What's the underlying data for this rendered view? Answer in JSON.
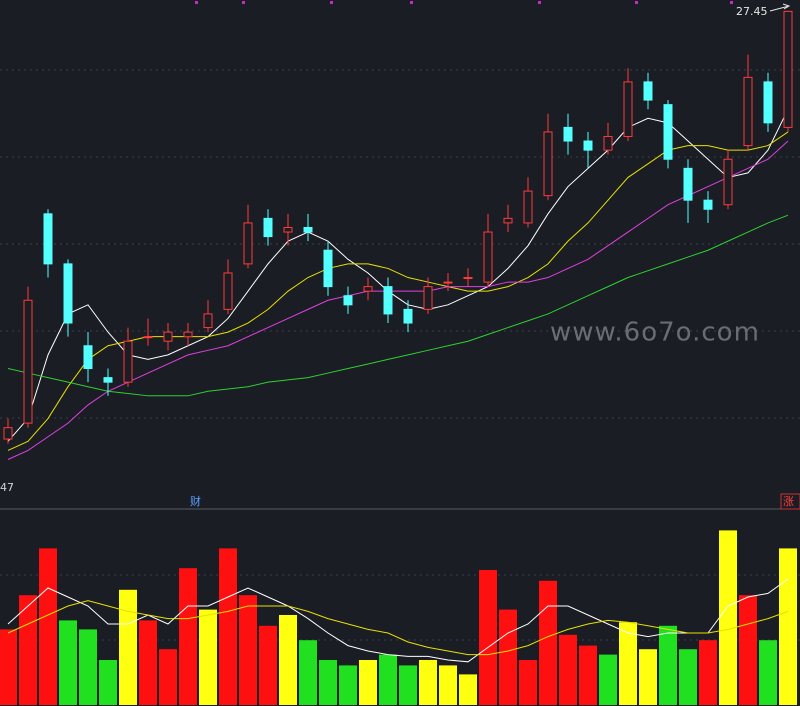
{
  "chart_data": [
    {
      "type": "candlestick",
      "up_color": "#ff3a3a",
      "down_color": "#54ffff",
      "ylim": [
        16.6,
        27.7
      ],
      "open": [
        18.05,
        18.4,
        23.0,
        21.9,
        20.1,
        19.4,
        19.3,
        20.3,
        20.2,
        20.3,
        20.5,
        20.9,
        21.9,
        22.9,
        22.6,
        22.7,
        22.2,
        21.2,
        21.3,
        21.4,
        20.9,
        20.9,
        21.5,
        21.6,
        21.5,
        22.8,
        22.8,
        23.4,
        24.9,
        24.6,
        24.4,
        24.7,
        25.9,
        25.4,
        24.0,
        23.3,
        23.2,
        24.5,
        25.9,
        24.9
      ],
      "high": [
        18.5,
        21.4,
        23.1,
        22.0,
        20.4,
        19.6,
        20.5,
        20.7,
        20.6,
        20.6,
        21.1,
        22.0,
        23.2,
        23.1,
        23.0,
        23.0,
        22.4,
        21.4,
        21.6,
        21.6,
        21.1,
        21.6,
        21.7,
        21.8,
        23.0,
        23.2,
        23.8,
        25.2,
        25.2,
        24.8,
        25.0,
        26.2,
        26.1,
        25.5,
        24.2,
        23.5,
        24.4,
        26.5,
        26.1,
        27.45
      ],
      "low": [
        17.95,
        18.3,
        21.6,
        20.3,
        19.3,
        19.0,
        19.2,
        20.1,
        20.0,
        20.1,
        20.4,
        20.8,
        21.8,
        22.3,
        22.3,
        22.4,
        21.2,
        20.8,
        21.1,
        20.6,
        20.4,
        20.8,
        21.3,
        21.4,
        21.4,
        22.6,
        22.7,
        23.3,
        24.3,
        24.0,
        24.3,
        24.6,
        25.3,
        24.0,
        22.8,
        22.8,
        23.1,
        24.4,
        24.8,
        24.8
      ],
      "close": [
        18.3,
        21.1,
        21.9,
        20.6,
        19.6,
        19.3,
        20.2,
        20.3,
        20.4,
        20.4,
        20.8,
        21.7,
        22.8,
        22.5,
        22.7,
        22.6,
        21.4,
        21.0,
        21.4,
        20.8,
        20.6,
        21.4,
        21.5,
        21.6,
        22.6,
        22.9,
        23.5,
        24.8,
        24.6,
        24.4,
        24.7,
        25.9,
        25.5,
        24.2,
        23.3,
        23.1,
        24.2,
        26.0,
        25.0,
        27.45
      ],
      "lines": [
        {
          "color": "#ffffff",
          "values": [
            18.0,
            18.5,
            19.9,
            20.8,
            21.0,
            20.4,
            19.9,
            19.8,
            19.9,
            20.1,
            20.3,
            20.7,
            21.3,
            21.9,
            22.4,
            22.6,
            22.4,
            22.0,
            21.7,
            21.3,
            21.0,
            20.9,
            21.0,
            21.2,
            21.4,
            21.8,
            22.3,
            23.0,
            23.6,
            24.0,
            24.4,
            24.9,
            25.1,
            25.0,
            24.6,
            24.2,
            23.8,
            23.9,
            24.4,
            25.3
          ]
        },
        {
          "color": "#e8e000",
          "values": [
            17.8,
            18.0,
            18.5,
            19.2,
            19.8,
            20.1,
            20.2,
            20.3,
            20.3,
            20.3,
            20.3,
            20.4,
            20.6,
            20.9,
            21.3,
            21.6,
            21.8,
            21.9,
            21.9,
            21.8,
            21.6,
            21.5,
            21.4,
            21.3,
            21.3,
            21.4,
            21.6,
            21.9,
            22.4,
            22.8,
            23.3,
            23.8,
            24.1,
            24.4,
            24.5,
            24.5,
            24.4,
            24.4,
            24.5,
            24.8
          ]
        },
        {
          "color": "#e040e0",
          "values": [
            17.6,
            17.8,
            18.1,
            18.4,
            18.8,
            19.1,
            19.3,
            19.5,
            19.7,
            19.9,
            20.0,
            20.1,
            20.3,
            20.5,
            20.7,
            20.9,
            21.1,
            21.2,
            21.3,
            21.3,
            21.3,
            21.3,
            21.4,
            21.4,
            21.4,
            21.5,
            21.5,
            21.6,
            21.8,
            22.0,
            22.3,
            22.6,
            22.9,
            23.2,
            23.4,
            23.6,
            23.8,
            24.0,
            24.2,
            24.6
          ]
        },
        {
          "color": "#30d030",
          "values": [
            19.6,
            19.5,
            19.4,
            19.3,
            19.2,
            19.1,
            19.05,
            19.0,
            19.0,
            19.0,
            19.1,
            19.15,
            19.2,
            19.3,
            19.35,
            19.4,
            19.5,
            19.6,
            19.7,
            19.8,
            19.9,
            20.0,
            20.1,
            20.2,
            20.35,
            20.5,
            20.65,
            20.8,
            21.0,
            21.2,
            21.4,
            21.6,
            21.75,
            21.9,
            22.05,
            22.2,
            22.4,
            22.6,
            22.8,
            22.97
          ]
        }
      ],
      "low_label": "47",
      "left_marker": "财",
      "right_marker": "涨",
      "watermark": "www.6o7o.com"
    },
    {
      "type": "bar",
      "ylim": [
        0,
        100
      ],
      "values": [
        42,
        61,
        87,
        47,
        42,
        25,
        64,
        47,
        31,
        76,
        53,
        87,
        61,
        44,
        50,
        36,
        25,
        22,
        25,
        28,
        22,
        25,
        22,
        17,
        75,
        53,
        25,
        69,
        39,
        33,
        28,
        46,
        31,
        44,
        31,
        36,
        97,
        61,
        36,
        87
      ],
      "colors": [
        "#ff1010",
        "#ff1010",
        "#ff1010",
        "#20e020",
        "#20e020",
        "#20e020",
        "#ffff10",
        "#ff1010",
        "#ff1010",
        "#ff1010",
        "#ffff10",
        "#ff1010",
        "#ff1010",
        "#ff1010",
        "#ffff10",
        "#20e020",
        "#20e020",
        "#20e020",
        "#ffff10",
        "#20e020",
        "#20e020",
        "#ffff10",
        "#ffff10",
        "#ffff10",
        "#ff1010",
        "#ff1010",
        "#ff1010",
        "#ff1010",
        "#ff1010",
        "#ff1010",
        "#20e020",
        "#ffff10",
        "#ffff10",
        "#20e020",
        "#20e020",
        "#ff1010",
        "#ffff10",
        "#ff1010",
        "#20e020",
        "#ffff10"
      ],
      "lines": [
        {
          "color": "#ffffff",
          "values": [
            45,
            55,
            65,
            60,
            55,
            45,
            45,
            50,
            45,
            55,
            55,
            60,
            65,
            60,
            55,
            48,
            40,
            33,
            30,
            28,
            27,
            27,
            25,
            24,
            32,
            40,
            45,
            55,
            55,
            50,
            45,
            40,
            38,
            40,
            40,
            40,
            55,
            60,
            62,
            70
          ]
        },
        {
          "color": "#e8e000",
          "values": [
            40,
            45,
            50,
            55,
            58,
            55,
            52,
            50,
            48,
            48,
            50,
            52,
            55,
            55,
            55,
            52,
            48,
            45,
            42,
            40,
            35,
            32,
            30,
            28,
            28,
            30,
            33,
            38,
            42,
            45,
            47,
            46,
            44,
            42,
            40,
            40,
            42,
            45,
            48,
            52
          ]
        }
      ]
    }
  ]
}
